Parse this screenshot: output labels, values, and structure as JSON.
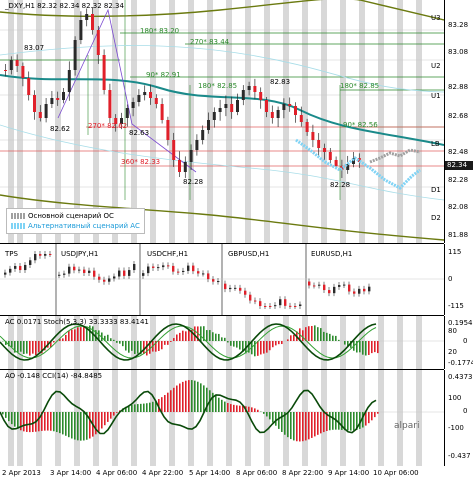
{
  "main": {
    "symbol_header": "_DXY,H1  82.32 82.34 82.32 82.34",
    "current_price": "82.34",
    "price_labels": [
      "83.07",
      "82.62",
      "82.63",
      "82.28",
      "82.83",
      "82.28"
    ],
    "fib_labels": [
      "180* 83.20",
      "270* 83.44",
      "90* 82.91",
      "180* 82.85",
      "270* 82.62",
      "360* 82.33",
      "180* 82.85",
      "90* 82.56"
    ],
    "level_labels": [
      "U3",
      "U2",
      "U1",
      "LB",
      "D1",
      "D2"
    ],
    "axis_values": [
      "83.28",
      "83.08",
      "82.88",
      "82.68",
      "82.48",
      "82.28",
      "82.08",
      "81.88"
    ],
    "legend": {
      "items": [
        {
          "label": "Основной сценарий ОС",
          "color": "#a0a0a0"
        },
        {
          "label": "Альтернативный сценарий АС",
          "color": "#7fd3f5"
        }
      ]
    }
  },
  "panel2": {
    "labels": [
      "TPS",
      "USDJPY,H1",
      "USDCHF,H1",
      "GBPUSD,H1",
      "EURUSD,H1"
    ],
    "axis_values": [
      "115",
      "0",
      "-115"
    ]
  },
  "panel3": {
    "header": "AC 0.0171  Stoch(5,3,3) 33.3333 83.4141",
    "axis_values": [
      "0.1954",
      "80",
      "20",
      "0",
      "-0.1774"
    ]
  },
  "panel4": {
    "header": "AO -0.148  CCI(14) -84.8485",
    "axis_values": [
      "0.4373",
      "100",
      "0",
      "-100",
      "-0.437"
    ]
  },
  "time_axis": [
    "2 Apr 2013",
    "3 Apr 14:00",
    "4 Apr 06:00",
    "4 Apr 22:00",
    "5 Apr 14:00",
    "8 Apr 06:00",
    "8 Apr 22:00",
    "9 Apr 14:00",
    "10 Apr 06:00"
  ],
  "watermark": "alpari",
  "colors": {
    "bull": "#2a2a2a",
    "bear": "#e0202a",
    "ma_teal": "#1a8a8a",
    "envelope_olive": "#6b7a10",
    "level_green": "#2c8a2c",
    "level_red": "#e06060",
    "fib_purple": "#7a4ad0",
    "stripe": "#d8d8d8"
  }
}
